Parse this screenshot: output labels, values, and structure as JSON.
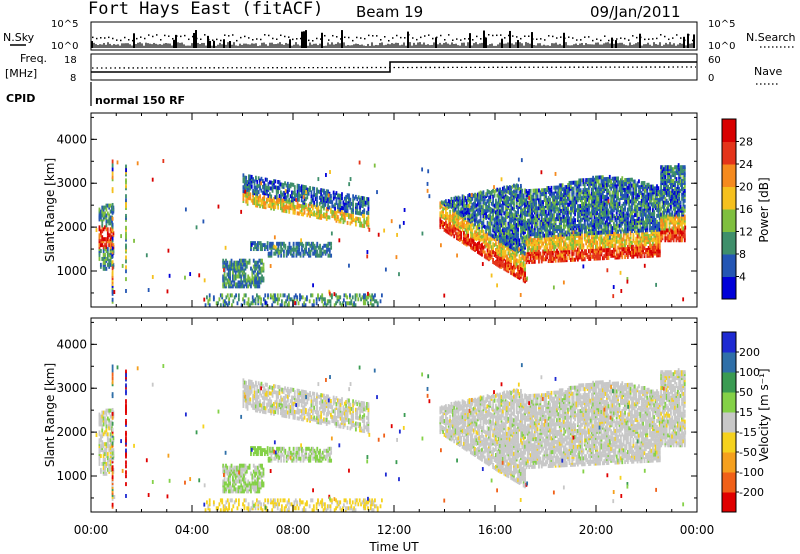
{
  "header": {
    "station": "Fort Hays East (fitACF)",
    "beam": "Beam 19",
    "date": "09/Jan/2011"
  },
  "top_panels": {
    "noise_left_label": "N.Sky",
    "noise_right_label": "N.Search",
    "noise_ticks": [
      "10^5",
      "10^0"
    ],
    "freq_label_line1": "Freq.",
    "freq_label_line2": "[MHz]",
    "freq_ticks": [
      "18",
      "8"
    ],
    "nave_label": "Nave",
    "nave_ticks": [
      "60",
      "0"
    ],
    "cpid_label": "CPID",
    "cpid_value": "normal 150 RF"
  },
  "x_axis": {
    "ticks": [
      "00:00",
      "04:00",
      "08:00",
      "12:00",
      "16:00",
      "20:00",
      "00:00"
    ],
    "title": "Time UT"
  },
  "power_colorbar": {
    "title": "Power [dB]",
    "ticks": [
      "4",
      "8",
      "12",
      "16",
      "20",
      "24",
      "28"
    ],
    "colors": [
      "#0000d8",
      "#2456b4",
      "#3f8f6b",
      "#7fbf3f",
      "#f5c01e",
      "#f58a1e",
      "#e4341a",
      "#d80000"
    ]
  },
  "velocity_colorbar": {
    "title": "Velocity [m s⁻¹]",
    "ticks": [
      "200",
      "100",
      "50",
      "15",
      "-15",
      "-50",
      "-100",
      "-200"
    ],
    "colors": [
      "#1e2ad2",
      "#2f6fa8",
      "#3a9b52",
      "#84d147",
      "#c8c8c8",
      "#f5d21e",
      "#f5a01e",
      "#f06018",
      "#e00000"
    ]
  },
  "chart_data": [
    {
      "type": "heatmap",
      "title": "",
      "xlabel": "Time UT",
      "ylabel": "Slant Range [km]",
      "y_ticks": [
        "1000",
        "2000",
        "3000",
        "4000"
      ],
      "xlim_hours": [
        0,
        24
      ],
      "ylim_km": [
        180,
        4600
      ],
      "colorbar": "Power [dB]",
      "regions": [
        {
          "t0": 0.3,
          "t1": 0.9,
          "r0": 1000,
          "r1": 2600,
          "dominant": "12-28 dB"
        },
        {
          "t0": 5.2,
          "t1": 6.8,
          "r0": 700,
          "r1": 1300,
          "dominant": "4-12 dB"
        },
        {
          "t0": 6.0,
          "t1": 11.0,
          "r0": 2200,
          "r1": 3300,
          "dominant": "8-20 dB"
        },
        {
          "t0": 13.8,
          "t1": 23.5,
          "r0": 1100,
          "r1": 3300,
          "dominant": "16-28 dB along 1300-1800 km"
        }
      ]
    },
    {
      "type": "heatmap",
      "title": "",
      "xlabel": "Time UT",
      "ylabel": "Slant Range [km]",
      "y_ticks": [
        "1000",
        "2000",
        "3000",
        "4000"
      ],
      "xlim_hours": [
        0,
        24
      ],
      "ylim_km": [
        180,
        4600
      ],
      "colorbar": "Velocity [m s⁻¹]",
      "regions": [
        {
          "t0": 0.3,
          "t1": 0.9,
          "r0": 1000,
          "r1": 2600,
          "dominant": "-15 to 15 m/s"
        },
        {
          "t0": 5.2,
          "t1": 6.8,
          "r0": 700,
          "r1": 1600,
          "dominant": "15-50 m/s"
        },
        {
          "t0": 6.0,
          "t1": 11.0,
          "r0": 2200,
          "r1": 3300,
          "dominant": "-15 to 15 m/s"
        },
        {
          "t0": 13.8,
          "t1": 23.5,
          "r0": 1100,
          "r1": 3300,
          "dominant": "-15 to 15 m/s"
        }
      ]
    }
  ]
}
